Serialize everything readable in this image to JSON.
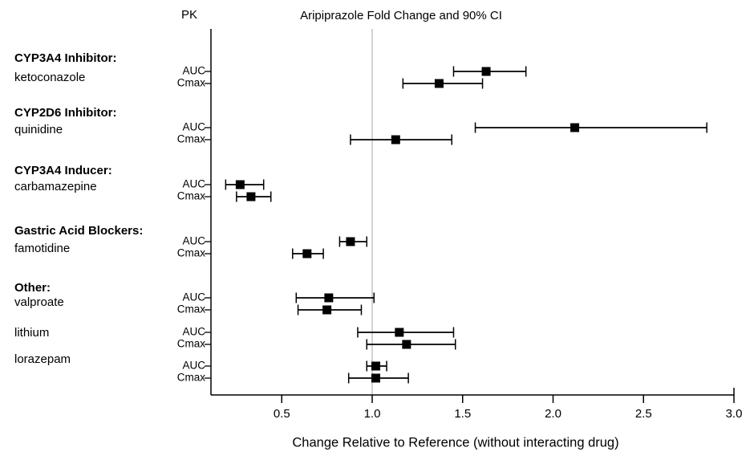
{
  "header": {
    "pk_label": "PK",
    "title": "Aripiprazole Fold Change and 90% CI"
  },
  "colors": {
    "marker": "#000000",
    "error_bar": "#000000",
    "axis": "#000000",
    "reference_line": "#c4c4c4",
    "text": "#000000",
    "background": "#ffffff"
  },
  "chart_data": {
    "type": "forest",
    "title": "Aripiprazole Fold Change and 90% CI",
    "column_header": "PK",
    "ci_level": "90% CI",
    "marker": "filled-square",
    "xlabel": "Change Relative to Reference (without interacting drug)",
    "x_ticks": [
      0.5,
      1.0,
      1.5,
      2.0,
      2.5,
      3.0
    ],
    "x_tick_labels": [
      "0.5",
      "1.0",
      "1.5",
      "2.0",
      "2.5",
      "3.0"
    ],
    "xlim": [
      0.1,
      3.0
    ],
    "reference_line": 1.0,
    "grid": false,
    "groups": [
      {
        "header": "CYP3A4 Inhibitor:",
        "drugs": [
          {
            "name": "ketoconazole",
            "measures": [
              {
                "label": "AUC",
                "value": 1.63,
                "lo": 1.45,
                "hi": 1.85
              },
              {
                "label": "Cmax",
                "value": 1.37,
                "lo": 1.17,
                "hi": 1.61
              }
            ]
          }
        ]
      },
      {
        "header": "CYP2D6 Inhibitor:",
        "drugs": [
          {
            "name": "quinidine",
            "measures": [
              {
                "label": "AUC",
                "value": 2.12,
                "lo": 1.57,
                "hi": 2.85
              },
              {
                "label": "Cmax",
                "value": 1.13,
                "lo": 0.88,
                "hi": 1.44
              }
            ]
          }
        ]
      },
      {
        "header": "CYP3A4 Inducer:",
        "drugs": [
          {
            "name": "carbamazepine",
            "measures": [
              {
                "label": "AUC",
                "value": 0.27,
                "lo": 0.19,
                "hi": 0.4
              },
              {
                "label": "Cmax",
                "value": 0.33,
                "lo": 0.25,
                "hi": 0.44
              }
            ]
          }
        ]
      },
      {
        "header": "Gastric Acid Blockers:",
        "drugs": [
          {
            "name": "famotidine",
            "measures": [
              {
                "label": "AUC",
                "value": 0.88,
                "lo": 0.82,
                "hi": 0.97
              },
              {
                "label": "Cmax",
                "value": 0.64,
                "lo": 0.56,
                "hi": 0.73
              }
            ]
          }
        ]
      },
      {
        "header": "Other:",
        "drugs": [
          {
            "name": "valproate",
            "measures": [
              {
                "label": "AUC",
                "value": 0.76,
                "lo": 0.58,
                "hi": 1.01
              },
              {
                "label": "Cmax",
                "value": 0.75,
                "lo": 0.59,
                "hi": 0.94
              }
            ]
          },
          {
            "name": "lithium",
            "measures": [
              {
                "label": "AUC",
                "value": 1.15,
                "lo": 0.92,
                "hi": 1.45
              },
              {
                "label": "Cmax",
                "value": 1.19,
                "lo": 0.97,
                "hi": 1.46
              }
            ]
          },
          {
            "name": "lorazepam",
            "measures": [
              {
                "label": "AUC",
                "value": 1.02,
                "lo": 0.97,
                "hi": 1.08
              },
              {
                "label": "Cmax",
                "value": 1.02,
                "lo": 0.87,
                "hi": 1.2
              }
            ]
          }
        ]
      }
    ]
  }
}
